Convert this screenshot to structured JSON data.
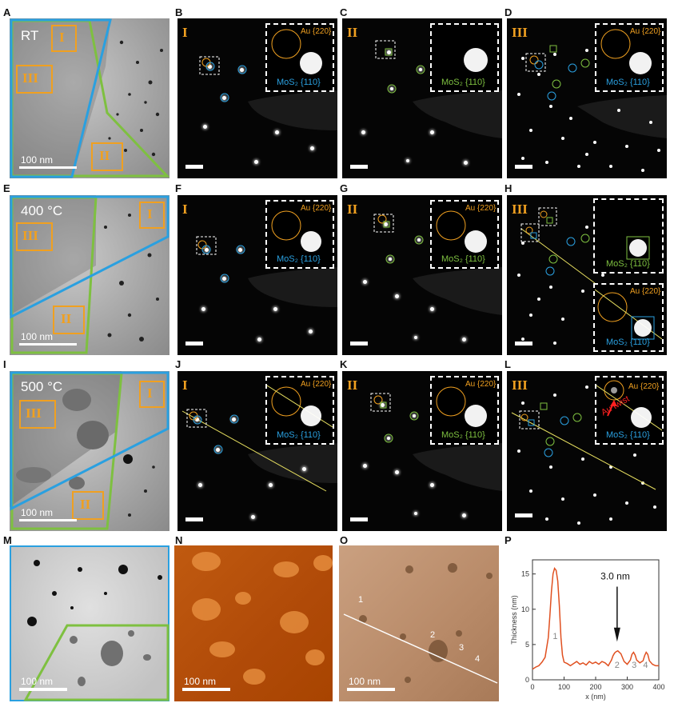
{
  "panel_letters": [
    "A",
    "B",
    "C",
    "D",
    "E",
    "F",
    "G",
    "H",
    "I",
    "J",
    "K",
    "L",
    "M",
    "N",
    "O",
    "P"
  ],
  "rows": [
    {
      "temp_label": "RT",
      "scale": "100 nm"
    },
    {
      "temp_label": "400 °C",
      "scale": "100 nm"
    },
    {
      "temp_label": "500 °C",
      "scale": "100 nm"
    }
  ],
  "regions": [
    "I",
    "II",
    "III"
  ],
  "au_label": "Au {220}",
  "mos2_label": "MoS₂ {110}",
  "au_twist": "Au twist",
  "bottom": {
    "m_scale": "100 nm",
    "n_scale": "100 nm",
    "o_scale": "100 nm",
    "o_markers": [
      "1",
      "2",
      "3",
      "4"
    ]
  },
  "colors": {
    "au": "#f0a020",
    "mos2_blue": "#2aa0e0",
    "mos2_green": "#7ec040",
    "profile": "#e05020"
  },
  "chart_data": {
    "type": "line",
    "xlabel": "x (nm)",
    "ylabel": "Thickness (nm)",
    "xlim": [
      0,
      400
    ],
    "ylim": [
      0,
      17
    ],
    "xticks": [
      0,
      100,
      200,
      300,
      400
    ],
    "yticks": [
      0,
      5,
      10,
      15
    ],
    "annotation": "3.0 nm",
    "peak_labels": [
      {
        "text": "1",
        "x": 72,
        "y": 5.8
      },
      {
        "text": "2",
        "x": 268,
        "y": 1.7
      },
      {
        "text": "3",
        "x": 322,
        "y": 1.7
      },
      {
        "text": "4",
        "x": 358,
        "y": 1.7
      }
    ],
    "series": [
      {
        "x": [
          0,
          10,
          20,
          30,
          40,
          50,
          55,
          60,
          65,
          70,
          75,
          80,
          85,
          90,
          95,
          100,
          110,
          120,
          130,
          140,
          150,
          160,
          170,
          180,
          190,
          200,
          210,
          220,
          230,
          240,
          250,
          255,
          260,
          265,
          270,
          275,
          280,
          290,
          300,
          310,
          315,
          320,
          325,
          330,
          340,
          350,
          355,
          360,
          365,
          370,
          380,
          390,
          400
        ],
        "values": [
          1.5,
          1.8,
          2.0,
          2.5,
          3.2,
          6,
          9,
          12.5,
          15,
          15.8,
          15.5,
          14,
          10.5,
          6,
          3.5,
          2.5,
          2.3,
          2.0,
          2.3,
          2.6,
          2.2,
          2.4,
          2.1,
          2.6,
          2.3,
          2.5,
          2.2,
          2.6,
          2.4,
          2.0,
          2.8,
          3.4,
          3.8,
          4.0,
          4.1,
          3.9,
          3.7,
          2.6,
          2.2,
          2.8,
          3.6,
          3.9,
          3.5,
          2.8,
          2.4,
          2.7,
          3.4,
          3.9,
          3.6,
          2.7,
          2.2,
          2.0,
          2.0
        ]
      }
    ]
  }
}
